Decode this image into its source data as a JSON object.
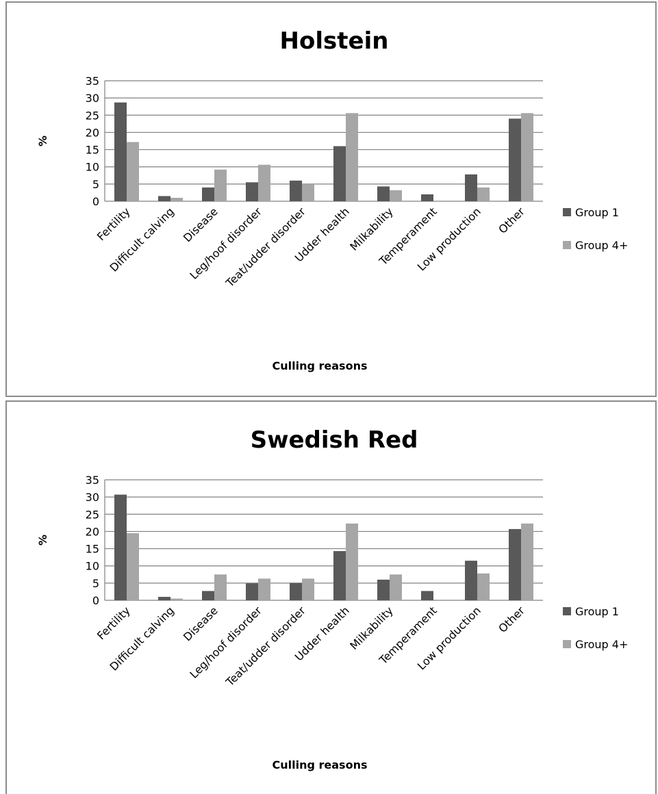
{
  "chart_data": [
    {
      "type": "bar",
      "title": "Holstein",
      "xlabel": "Culling reasons",
      "ylabel": "%",
      "ylim": [
        0,
        35
      ],
      "yticks": [
        0,
        5,
        10,
        15,
        20,
        25,
        30,
        35
      ],
      "grid": true,
      "legend_position": "right",
      "categories": [
        "Fertility",
        "Difficult calving",
        "Disease",
        "Leg/hoof disorder",
        "Teat/udder disorder",
        "Udder health",
        "Milkability",
        "Temperament",
        "Low production",
        "Other"
      ],
      "series": [
        {
          "name": "Group 1",
          "color": "#595959",
          "values": [
            28.7,
            1.5,
            4.0,
            5.5,
            6.0,
            16.0,
            4.3,
            2.0,
            7.8,
            24.0
          ]
        },
        {
          "name": "Group 4+",
          "color": "#a6a6a6",
          "values": [
            17.2,
            1.0,
            9.2,
            10.6,
            5.0,
            25.6,
            3.2,
            0.0,
            4.0,
            25.6
          ]
        }
      ]
    },
    {
      "type": "bar",
      "title": "Swedish Red",
      "xlabel": "Culling reasons",
      "ylabel": "%",
      "ylim": [
        0,
        35
      ],
      "yticks": [
        0,
        5,
        10,
        15,
        20,
        25,
        30,
        35
      ],
      "grid": true,
      "legend_position": "right",
      "categories": [
        "Fertility",
        "Difficult calving",
        "Disease",
        "Leg/hoof disorder",
        "Teat/udder disorder",
        "Udder health",
        "Milkability",
        "Temperament",
        "Low production",
        "Other"
      ],
      "series": [
        {
          "name": "Group 1",
          "color": "#595959",
          "values": [
            30.7,
            1.0,
            2.7,
            4.9,
            5.0,
            14.3,
            6.0,
            2.7,
            11.5,
            20.7
          ]
        },
        {
          "name": "Group 4+",
          "color": "#a6a6a6",
          "values": [
            19.5,
            0.5,
            7.5,
            6.3,
            6.3,
            22.3,
            7.5,
            0.0,
            7.8,
            22.3
          ]
        }
      ]
    }
  ]
}
